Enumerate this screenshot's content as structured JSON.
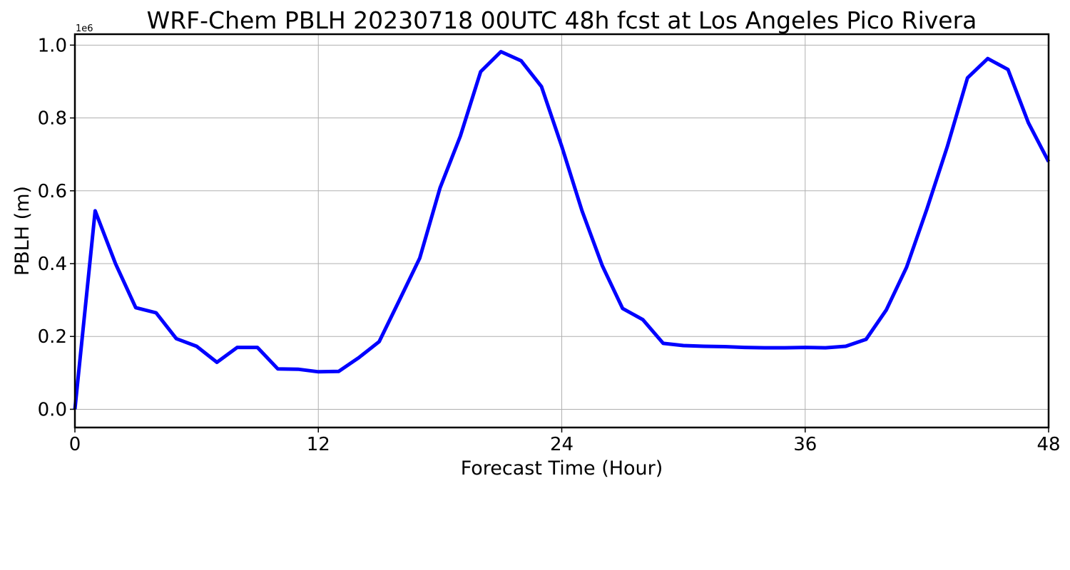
{
  "chart_data": {
    "type": "line",
    "title": "WRF-Chem PBLH  20230718 00UTC 48h fcst at Los Angeles Pico Rivera",
    "xlabel": "Forecast Time (Hour)",
    "ylabel": "PBLH  (m)",
    "y_offset_label": "1e6",
    "xlim": [
      0,
      48
    ],
    "ylim": [
      -0.05,
      1.03
    ],
    "x_ticks": [
      0,
      12,
      24,
      36,
      48
    ],
    "x_tick_labels": [
      "0",
      "12",
      "24",
      "36",
      "48"
    ],
    "y_ticks": [
      0.0,
      0.2,
      0.4,
      0.6,
      0.8,
      1.0
    ],
    "y_tick_labels": [
      "0.0",
      "0.2",
      "0.4",
      "0.6",
      "0.8",
      "1.0"
    ],
    "grid": true,
    "line_color": "#0000ff",
    "series": [
      {
        "x": [
          0,
          1,
          2,
          3,
          4,
          5,
          6,
          7,
          8,
          9,
          10,
          11,
          12,
          13,
          14,
          15,
          16,
          17,
          18,
          19,
          20,
          21,
          22,
          23,
          24,
          25,
          26,
          27,
          28,
          29,
          30,
          31,
          32,
          33,
          34,
          35,
          36,
          37,
          38,
          39,
          40,
          41,
          42,
          43,
          44,
          45,
          46,
          47,
          48
        ],
        "values": [
          0.0,
          0.545,
          0.4,
          0.279,
          0.265,
          0.194,
          0.173,
          0.129,
          0.17,
          0.17,
          0.111,
          0.11,
          0.103,
          0.104,
          0.142,
          0.186,
          0.3,
          0.415,
          0.608,
          0.75,
          0.927,
          0.982,
          0.957,
          0.886,
          0.722,
          0.545,
          0.394,
          0.277,
          0.246,
          0.181,
          0.175,
          0.173,
          0.172,
          0.17,
          0.169,
          0.169,
          0.17,
          0.169,
          0.173,
          0.192,
          0.273,
          0.39,
          0.55,
          0.72,
          0.91,
          0.963,
          0.933,
          0.787,
          0.68
        ]
      }
    ]
  }
}
